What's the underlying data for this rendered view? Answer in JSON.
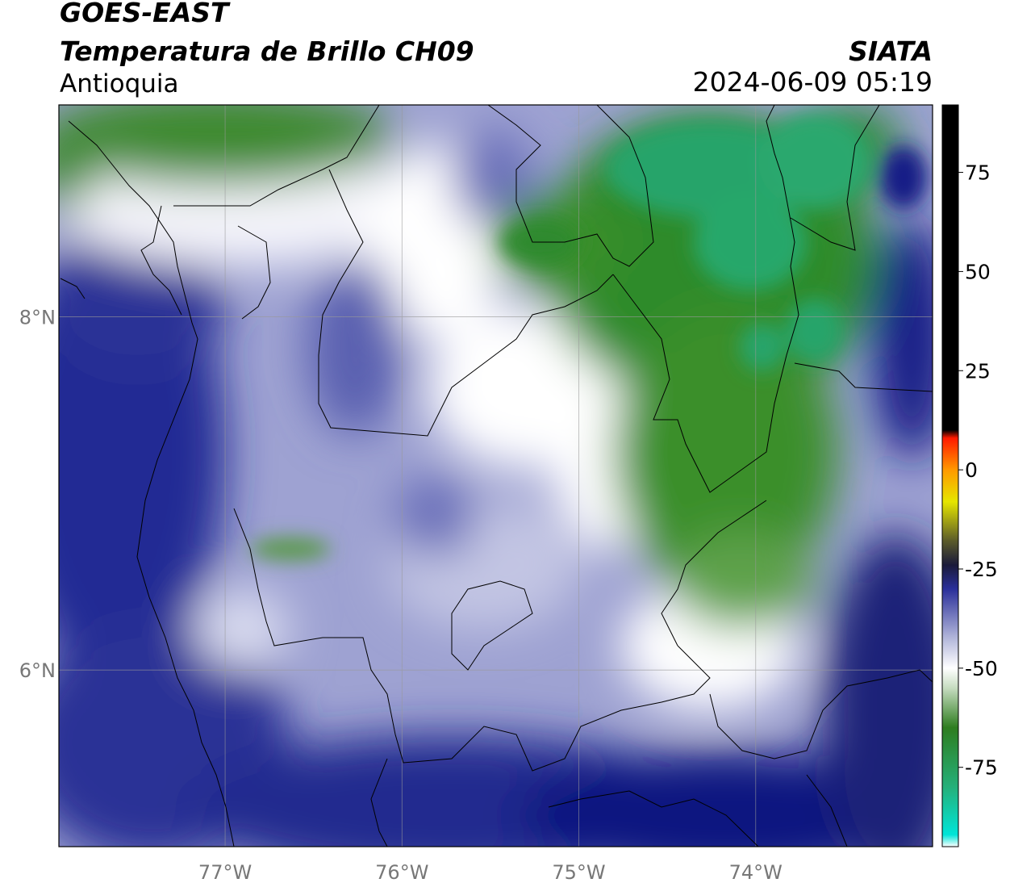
{
  "header": {
    "satellite": "GOES-EAST",
    "product": "Temperatura de Brillo CH09",
    "region": "Antioquia",
    "agency": "SIATA",
    "datetime": "2024-06-09 05:19"
  },
  "map": {
    "lon_range": [
      -77.94,
      -73.0
    ],
    "lat_range": [
      5.0,
      9.2
    ],
    "lon_ticks": [
      {
        "value": -77,
        "label": "77°W"
      },
      {
        "value": -76,
        "label": "76°W"
      },
      {
        "value": -75,
        "label": "75°W"
      },
      {
        "value": -74,
        "label": "74°W"
      }
    ],
    "lat_ticks": [
      {
        "value": 8,
        "label": "8°N"
      },
      {
        "value": 6,
        "label": "6°N"
      }
    ],
    "grid": true
  },
  "colorbar": {
    "min": -95,
    "max": 92,
    "ticks": [
      {
        "value": 75,
        "label": "75"
      },
      {
        "value": 50,
        "label": "50"
      },
      {
        "value": 25,
        "label": "25"
      },
      {
        "value": 0,
        "label": "0"
      },
      {
        "value": -25,
        "label": "-25"
      },
      {
        "value": -50,
        "label": "-50"
      },
      {
        "value": -75,
        "label": "-75"
      }
    ],
    "stops": [
      {
        "value": -95,
        "color": "#ffffff"
      },
      {
        "value": -92,
        "color": "#00e5d8"
      },
      {
        "value": -80,
        "color": "#25b07a"
      },
      {
        "value": -65,
        "color": "#2e7d1f"
      },
      {
        "value": -55,
        "color": "#c6dcc0"
      },
      {
        "value": -50,
        "color": "#ffffff"
      },
      {
        "value": -42,
        "color": "#aeb2d8"
      },
      {
        "value": -30,
        "color": "#2a2f9a"
      },
      {
        "value": -24,
        "color": "#1a1a3a"
      },
      {
        "value": -18,
        "color": "#5a5a2a"
      },
      {
        "value": -8,
        "color": "#e6e600"
      },
      {
        "value": 0,
        "color": "#ff9900"
      },
      {
        "value": 8,
        "color": "#ff1a00"
      },
      {
        "value": 10,
        "color": "#000000"
      },
      {
        "value": 92,
        "color": "#000000"
      }
    ]
  }
}
